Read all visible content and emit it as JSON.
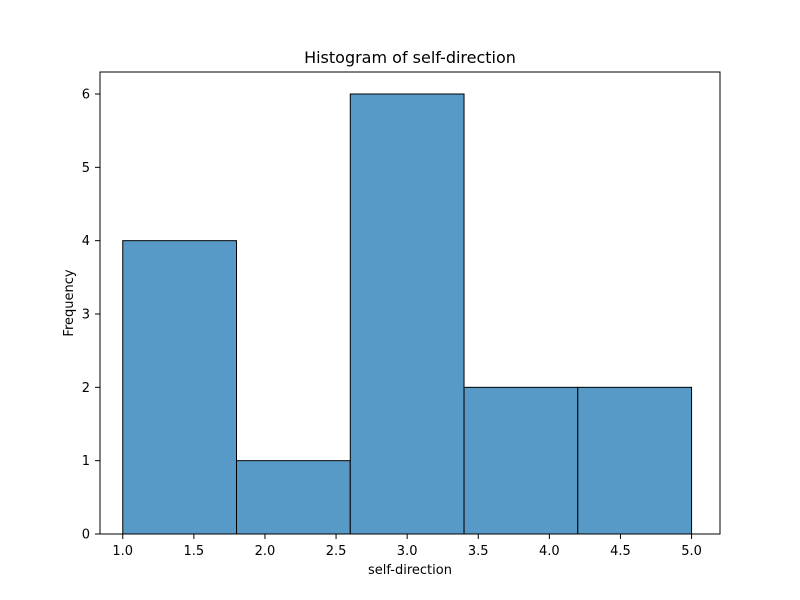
{
  "chart_data": {
    "type": "bar",
    "title": "Histogram of self-direction",
    "xlabel": "self-direction",
    "ylabel": "Frequency",
    "bins": [
      {
        "start": 1.0,
        "end": 1.8,
        "count": 4
      },
      {
        "start": 1.8,
        "end": 2.6,
        "count": 1
      },
      {
        "start": 2.6,
        "end": 3.4,
        "count": 6
      },
      {
        "start": 3.4,
        "end": 4.2,
        "count": 2
      },
      {
        "start": 4.2,
        "end": 5.0,
        "count": 2
      }
    ],
    "xlim": [
      0.84,
      5.2
    ],
    "ylim": [
      0,
      6.3
    ],
    "xticks": [
      "1.0",
      "1.5",
      "2.0",
      "2.5",
      "3.0",
      "3.5",
      "4.0",
      "4.5",
      "5.0"
    ],
    "yticks": [
      "0",
      "1",
      "2",
      "3",
      "4",
      "5",
      "6"
    ],
    "bar_color": "#5799c7",
    "edge_color": "#000000",
    "grid": false,
    "legend": "none"
  }
}
